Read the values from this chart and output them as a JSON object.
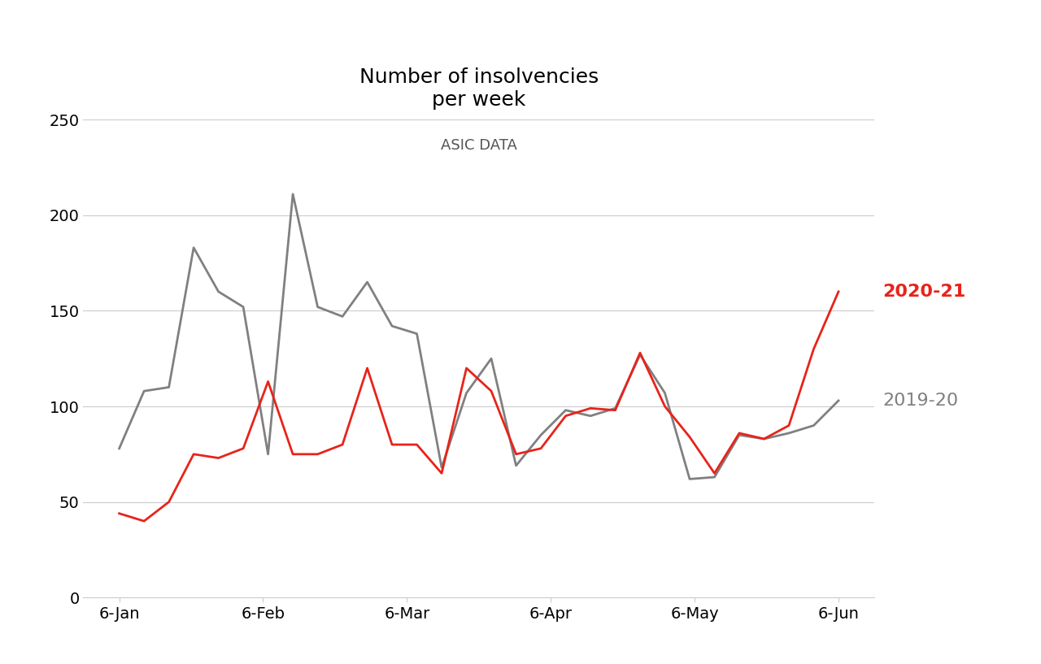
{
  "title_line1": "Number of insolvencies",
  "title_line2": "per week",
  "subtitle": "ASIC DATA",
  "x_labels": [
    "6-Jan",
    "6-Feb",
    "6-Mar",
    "6-Apr",
    "6-May",
    "6-Jun"
  ],
  "series_2019_20": {
    "label": "2019-20",
    "color": "#808080",
    "values": [
      78,
      108,
      110,
      183,
      160,
      152,
      75,
      211,
      152,
      147,
      165,
      142,
      138,
      68,
      107,
      125,
      69,
      85,
      98,
      95,
      99,
      127,
      107,
      62,
      63,
      85,
      83,
      86,
      90,
      103
    ]
  },
  "series_2020_21": {
    "label": "2020-21",
    "color": "#e8231a",
    "values": [
      44,
      40,
      50,
      75,
      73,
      78,
      113,
      75,
      75,
      80,
      120,
      80,
      80,
      65,
      120,
      108,
      75,
      78,
      95,
      99,
      98,
      128,
      100,
      84,
      65,
      86,
      83,
      90,
      130,
      160
    ]
  },
  "ylim": [
    0,
    250
  ],
  "yticks": [
    0,
    50,
    100,
    150,
    200,
    250
  ],
  "background_color": "#ffffff",
  "grid_color": "#cccccc",
  "label_2020_21_color": "#e8231a",
  "label_2019_20_color": "#808080",
  "label_fontsize": 16,
  "title_fontsize": 18,
  "subtitle_fontsize": 13
}
